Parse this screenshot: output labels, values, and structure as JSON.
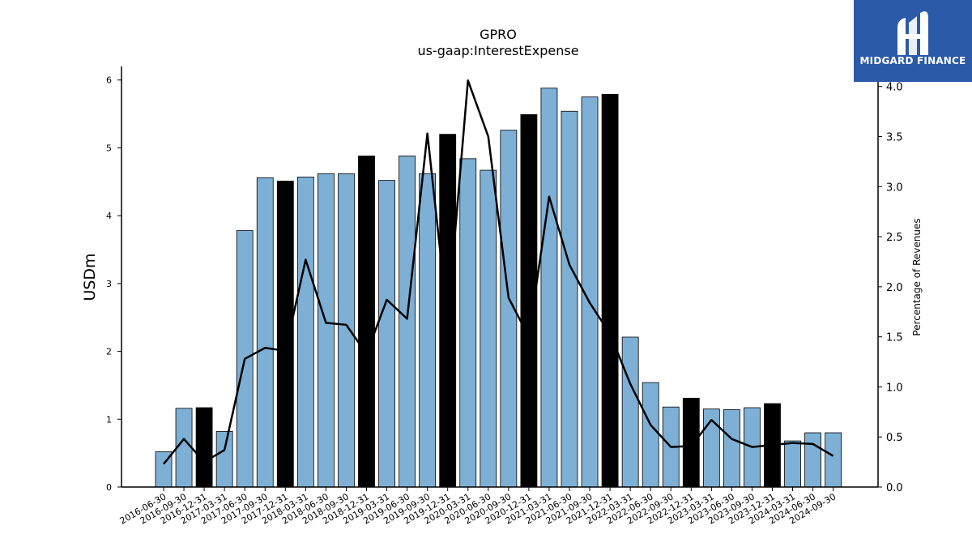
{
  "brand": {
    "name": "MIDGARD FINANCE",
    "color": "#2b5aa8"
  },
  "chart_data": {
    "type": "bar",
    "title": "GPRO",
    "subtitle": "us-gaap:InterestExpense",
    "ylabel": "USDm",
    "y2label": "Percentage of Revenues",
    "ylim": [
      0,
      6.2
    ],
    "y2lim": [
      0,
      4.2
    ],
    "yticks": [
      "0",
      "1",
      "2",
      "3",
      "4",
      "5",
      "6"
    ],
    "y2ticks": [
      "0.0",
      "0.5",
      "1.0",
      "1.5",
      "2.0",
      "2.5",
      "3.0",
      "3.5",
      "4.0"
    ],
    "grid": false,
    "colors": {
      "quarter_bar": "#7eb0d5",
      "year_end_bar": "#000000",
      "line": "#000000"
    },
    "categories": [
      "2016-06-30",
      "2016-09-30",
      "2016-12-31",
      "2017-03-31",
      "2017-06-30",
      "2017-09-30",
      "2017-12-31",
      "2018-03-31",
      "2018-06-30",
      "2018-09-30",
      "2018-12-31",
      "2019-03-31",
      "2019-06-30",
      "2019-09-30",
      "2019-12-31",
      "2020-03-31",
      "2020-06-30",
      "2020-09-30",
      "2020-12-31",
      "2021-03-31",
      "2021-06-30",
      "2021-09-30",
      "2021-12-31",
      "2022-03-31",
      "2022-06-30",
      "2022-09-30",
      "2022-12-31",
      "2023-03-31",
      "2023-06-30",
      "2023-09-30",
      "2023-12-31",
      "2024-03-31",
      "2024-06-30",
      "2024-09-30"
    ],
    "series": [
      {
        "type": "bar",
        "values": [
          0.52,
          1.16,
          1.17,
          0.82,
          3.78,
          4.56,
          4.51,
          4.57,
          4.62,
          4.62,
          4.88,
          4.52,
          4.88,
          4.62,
          5.2,
          4.84,
          4.67,
          5.26,
          5.49,
          5.88,
          5.54,
          5.75,
          5.79,
          2.21,
          1.54,
          1.18,
          1.31,
          1.15,
          1.14,
          1.17,
          1.23,
          0.68,
          0.8,
          0.8
        ],
        "highlight": [
          false,
          false,
          true,
          false,
          false,
          false,
          true,
          false,
          false,
          false,
          true,
          false,
          false,
          false,
          true,
          false,
          false,
          false,
          true,
          false,
          false,
          false,
          true,
          false,
          false,
          false,
          true,
          false,
          false,
          false,
          true,
          false,
          false,
          false
        ]
      },
      {
        "type": "line",
        "axis": "right",
        "values": [
          0.23,
          0.48,
          0.25,
          0.37,
          1.28,
          1.39,
          1.36,
          2.27,
          1.64,
          1.62,
          1.33,
          1.87,
          1.68,
          3.53,
          1.67,
          4.06,
          3.5,
          1.89,
          1.5,
          2.9,
          2.22,
          1.84,
          1.53,
          1.03,
          0.62,
          0.4,
          0.41,
          0.67,
          0.48,
          0.4,
          0.42,
          0.44,
          0.43,
          0.31
        ]
      }
    ]
  }
}
